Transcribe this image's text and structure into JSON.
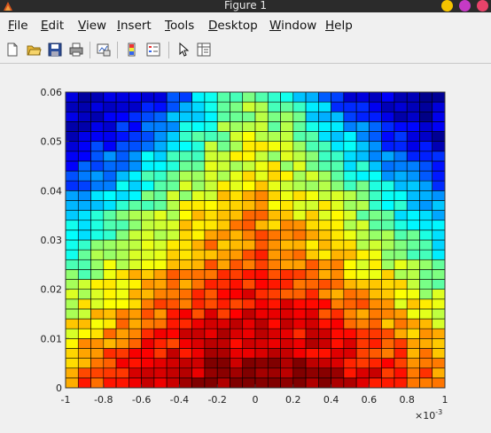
{
  "window": {
    "title": "Figure 1",
    "button_colors": [
      "#f5c400",
      "#c53ac5",
      "#e8436a"
    ]
  },
  "menu": {
    "items": [
      {
        "label": "File",
        "key": "F",
        "rest": "ile"
      },
      {
        "label": "Edit",
        "key": "E",
        "rest": "dit"
      },
      {
        "label": "View",
        "key": "V",
        "rest": "iew"
      },
      {
        "label": "Insert",
        "key": "I",
        "rest": "nsert"
      },
      {
        "label": "Tools",
        "key": "T",
        "rest": "ools"
      },
      {
        "label": "Desktop",
        "key": "D",
        "rest": "esktop"
      },
      {
        "label": "Window",
        "key": "W",
        "rest": "indow"
      },
      {
        "label": "Help",
        "key": "H",
        "rest": "elp"
      }
    ]
  },
  "toolbar": {
    "icons": [
      "new-figure-icon",
      "open-file-icon",
      "save-icon",
      "print-icon",
      "link-plot-icon",
      "colorbar-icon",
      "legend-icon",
      "pointer-icon",
      "property-inspector-icon"
    ]
  },
  "chart_data": {
    "type": "heatmap",
    "colormap": "jet",
    "x_range": [
      -0.001,
      0.001
    ],
    "y_range": [
      0,
      0.06
    ],
    "x_ticks": [
      "-1",
      "-0.8",
      "-0.6",
      "-0.4",
      "-0.2",
      "0",
      "0.2",
      "0.4",
      "0.6",
      "0.8",
      "1"
    ],
    "y_ticks": [
      "0",
      "0.01",
      "0.02",
      "0.03",
      "0.04",
      "0.05",
      "0.06"
    ],
    "x_exponent": "×10",
    "x_exponent_power": "-3",
    "grid_cols": 30,
    "grid_rows": 30,
    "value_model": "gaussian beam: high (red) near x=0 and small y, decreasing toward large |x| and large y (blue)"
  }
}
